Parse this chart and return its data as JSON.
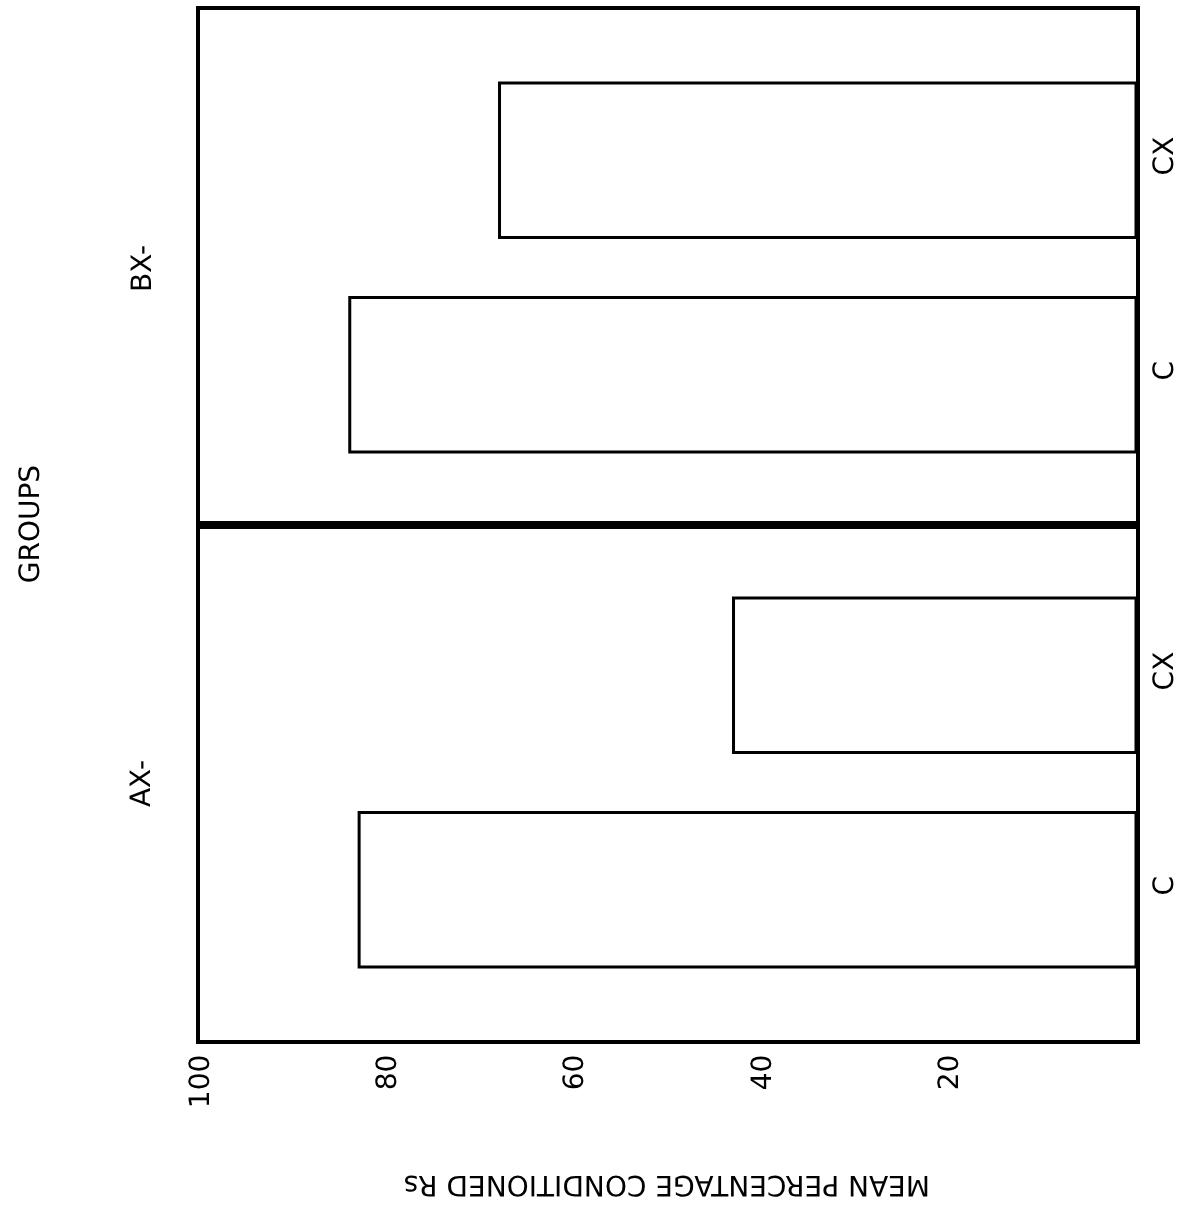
{
  "chart_data": [
    {
      "type": "bar",
      "orientation": "horizontal",
      "ylabel": "BX-",
      "categories": [
        "CX",
        "C"
      ],
      "values": [
        68,
        84
      ],
      "colors": [
        "#ffffff",
        "#ffffff"
      ],
      "xlim": [
        100,
        0
      ],
      "tick_labels": "y",
      "annotations": [
        "GROUPS"
      ]
    },
    {
      "type": "bar",
      "orientation": "horizontal",
      "ylabel": "AX-",
      "xlabel": "MEAN PERCENTAGE CONDITIONED Rs",
      "categories": [
        "CX",
        "C"
      ],
      "values": [
        43,
        83
      ],
      "colors": [
        "#ffffff",
        "#ffffff"
      ],
      "xlim": [
        100,
        0
      ],
      "xticks": [
        100,
        80,
        60,
        40,
        20
      ]
    }
  ]
}
